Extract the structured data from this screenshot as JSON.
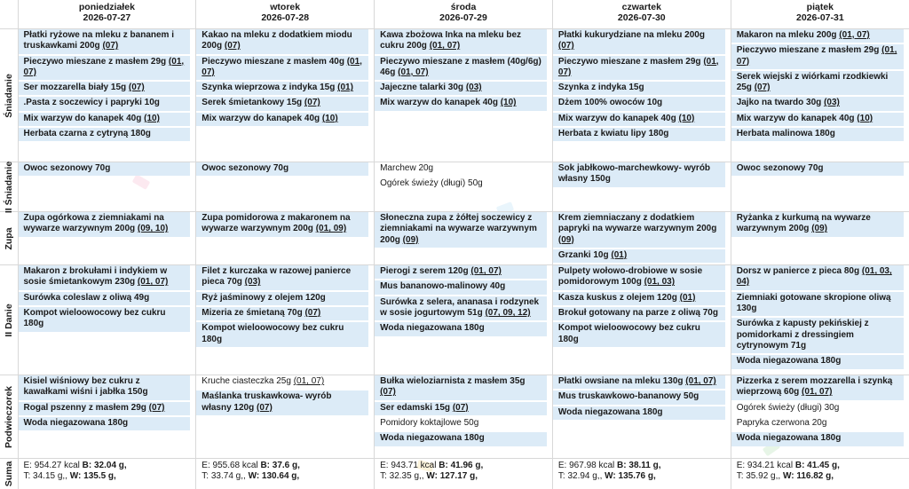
{
  "days": [
    {
      "name": "poniedziałek",
      "date": "2026-07-27"
    },
    {
      "name": "wtorek",
      "date": "2026-07-28"
    },
    {
      "name": "środa",
      "date": "2026-07-29"
    },
    {
      "name": "czwartek",
      "date": "2026-07-30"
    },
    {
      "name": "piątek",
      "date": "2026-07-31"
    }
  ],
  "meals": [
    {
      "label": "Śniadanie",
      "cells": [
        [
          {
            "text": "Płatki ryżowe na mleku z bananem i truskawkami 200g",
            "al": "(07)",
            "bg": "blue"
          },
          {
            "text": "Pieczywo mieszane z masłem 29g",
            "al": "(01, 07)",
            "bg": "blue"
          },
          {
            "text": "Ser mozzarella biały 15g",
            "al": "(07)",
            "bg": "blue"
          },
          {
            "text": ".Pasta z soczewicy i papryki 10g",
            "al": "",
            "bg": "blue"
          },
          {
            "text": "Mix warzyw do kanapek 40g",
            "al": "(10)",
            "bg": "blue"
          },
          {
            "text": "Herbata czarna z cytryną 180g",
            "al": "",
            "bg": "blue"
          }
        ],
        [
          {
            "text": "Kakao na mleku z dodatkiem miodu 200g",
            "al": "(07)",
            "bg": "blue"
          },
          {
            "text": "Pieczywo mieszane z masłem 40g",
            "al": "(01, 07)",
            "bg": "blue"
          },
          {
            "text": "Szynka wieprzowa z indyka 15g",
            "al": "(01)",
            "bg": "blue"
          },
          {
            "text": "Serek śmietankowy 15g",
            "al": "(07)",
            "bg": "blue"
          },
          {
            "text": "Mix warzyw do kanapek 40g",
            "al": "(10)",
            "bg": "blue"
          }
        ],
        [
          {
            "text": "Kawa zbożowa Inka na mleku bez cukru 200g",
            "al": "(01, 07)",
            "bg": "blue"
          },
          {
            "text": "Pieczywo mieszane z masłem (40g/6g) 46g",
            "al": "(01, 07)",
            "bg": "blue"
          },
          {
            "text": "Jajeczne talarki 30g",
            "al": "(03)",
            "bg": "blue"
          },
          {
            "text": "Mix warzyw do kanapek 40g",
            "al": "(10)",
            "bg": "blue"
          }
        ],
        [
          {
            "text": "Płatki kukurydziane na mleku 200g",
            "al": "(07)",
            "bg": "blue"
          },
          {
            "text": "Pieczywo mieszane z masłem 29g",
            "al": "(01, 07)",
            "bg": "blue"
          },
          {
            "text": "Szynka z indyka 15g",
            "al": "",
            "bg": "blue"
          },
          {
            "text": "Dżem 100% owoców 10g",
            "al": "",
            "bg": "blue"
          },
          {
            "text": "Mix warzyw do kanapek 40g",
            "al": "(10)",
            "bg": "blue"
          },
          {
            "text": "Herbata z kwiatu lipy 180g",
            "al": "",
            "bg": "blue"
          }
        ],
        [
          {
            "text": "Makaron na mleku 200g",
            "al": "(01, 07)",
            "bg": "blue"
          },
          {
            "text": "Pieczywo mieszane z masłem 29g",
            "al": "(01, 07)",
            "bg": "blue"
          },
          {
            "text": "Serek wiejski z wiórkami rzodkiewki 25g",
            "al": "(07)",
            "bg": "blue"
          },
          {
            "text": "Jajko na twardo 30g",
            "al": "(03)",
            "bg": "blue"
          },
          {
            "text": "Mix warzyw do kanapek 40g",
            "al": "(10)",
            "bg": "blue"
          },
          {
            "text": "Herbata malinowa 180g",
            "al": "",
            "bg": "blue"
          }
        ]
      ]
    },
    {
      "label": "II Śniadanie",
      "cells": [
        [
          {
            "text": "Owoc sezonowy 70g",
            "al": "",
            "bg": "blue"
          }
        ],
        [
          {
            "text": "Owoc sezonowy 70g",
            "al": "",
            "bg": "blue"
          }
        ],
        [
          {
            "text": "Marchew 20g",
            "al": "",
            "bg": "plain"
          },
          {
            "text": "Ogórek świeży (długi) 50g",
            "al": "",
            "bg": "plain"
          }
        ],
        [
          {
            "text": "Sok jabłkowo-marchewkowy- wyrób własny 150g",
            "al": "",
            "bg": "blue"
          }
        ],
        [
          {
            "text": "Owoc sezonowy 70g",
            "al": "",
            "bg": "blue"
          }
        ]
      ]
    },
    {
      "label": "Zupa",
      "cells": [
        [
          {
            "text": "Zupa ogórkowa z ziemniakami na wywarze warzywnym 200g",
            "al": "(09, 10)",
            "bg": "blue"
          }
        ],
        [
          {
            "text": "Zupa pomidorowa z makaronem na wywarze warzywnym 200g",
            "al": "(01, 09)",
            "bg": "blue"
          }
        ],
        [
          {
            "text": "Słoneczna zupa z żółtej soczewicy z ziemniakami na wywarze warzywnym 200g",
            "al": "(09)",
            "bg": "blue"
          }
        ],
        [
          {
            "text": "Krem ziemniaczany z dodatkiem papryki na wywarze warzywnym 200g",
            "al": "(09)",
            "bg": "blue"
          },
          {
            "text": "Grzanki 10g",
            "al": "(01)",
            "bg": "blue"
          }
        ],
        [
          {
            "text": "Ryżanka z kurkumą na wywarze warzywnym 200g",
            "al": "(09)",
            "bg": "blue"
          }
        ]
      ]
    },
    {
      "label": "II Danie",
      "cells": [
        [
          {
            "text": "Makaron z brokułami i indykiem w sosie śmietankowym 230g",
            "al": "(01, 07)",
            "bg": "blue"
          },
          {
            "text": "Surówka coleslaw z oliwą 49g",
            "al": "",
            "bg": "blue"
          },
          {
            "text": "Kompot wieloowocowy bez cukru 180g",
            "al": "",
            "bg": "blue"
          }
        ],
        [
          {
            "text": "Filet z kurczaka w razowej panierce pieca 70g",
            "al": "(03)",
            "bg": "blue"
          },
          {
            "text": "Ryż jaśminowy z olejem 120g",
            "al": "",
            "bg": "blue"
          },
          {
            "text": "Mizeria ze śmietaną 70g",
            "al": "(07)",
            "bg": "blue"
          },
          {
            "text": "Kompot wieloowocowy bez cukru 180g",
            "al": "",
            "bg": "blue"
          }
        ],
        [
          {
            "text": "Pierogi z serem 120g",
            "al": "(01, 07)",
            "bg": "blue"
          },
          {
            "text": "Mus bananowo-malinowy 40g",
            "al": "",
            "bg": "blue"
          },
          {
            "text": "Surówka z selera, ananasa i rodzynek w sosie jogurtowym 51g",
            "al": "(07, 09, 12)",
            "bg": "blue"
          },
          {
            "text": "Woda niegazowana 180g",
            "al": "",
            "bg": "blue"
          }
        ],
        [
          {
            "text": "Pulpety wołowo-drobiowe w sosie pomidorowym 100g",
            "al": "(01, 03)",
            "bg": "blue"
          },
          {
            "text": "Kasza kuskus z olejem 120g",
            "al": "(01)",
            "bg": "blue"
          },
          {
            "text": "Brokuł gotowany na parze z oliwą 70g",
            "al": "",
            "bg": "blue"
          },
          {
            "text": "Kompot wieloowocowy bez cukru 180g",
            "al": "",
            "bg": "blue"
          }
        ],
        [
          {
            "text": "Dorsz w panierce z pieca 80g",
            "al": "(01, 03, 04)",
            "bg": "blue"
          },
          {
            "text": "Ziemniaki gotowane skropione oliwą 130g",
            "al": "",
            "bg": "blue"
          },
          {
            "text": "Surówka z kapusty pekińskiej z pomidorkami z dressingiem cytrynowym 71g",
            "al": "",
            "bg": "blue"
          },
          {
            "text": "Woda niegazowana 180g",
            "al": "",
            "bg": "blue"
          }
        ]
      ]
    },
    {
      "label": "Podwieczorek",
      "cells": [
        [
          {
            "text": "Kisiel wiśniowy bez cukru z kawałkami wiśni i jabłka 150g",
            "al": "",
            "bg": "blue"
          },
          {
            "text": "Rogal pszenny z masłem 29g",
            "al": "(07)",
            "bg": "blue"
          },
          {
            "text": "Woda niegazowana 180g",
            "al": "",
            "bg": "blue"
          }
        ],
        [
          {
            "text": "Kruche ciasteczka 25g",
            "al": "(01, 07)",
            "bg": "plain"
          },
          {
            "text": "Maślanka truskawkowa- wyrób własny 120g",
            "al": "(07)",
            "bg": "blue"
          }
        ],
        [
          {
            "text": "Bułka wieloziarnista z masłem 35g",
            "al": "(07)",
            "bg": "blue"
          },
          {
            "text": "Ser edamski 15g",
            "al": "(07)",
            "bg": "blue"
          },
          {
            "text": "Pomidory koktajlowe 50g",
            "al": "",
            "bg": "plain"
          },
          {
            "text": "Woda niegazowana 180g",
            "al": "",
            "bg": "blue"
          }
        ],
        [
          {
            "text": "Płatki owsiane na mleku 130g",
            "al": "(01, 07)",
            "bg": "blue"
          },
          {
            "text": "Mus truskawkowo-bananowy 50g",
            "al": "",
            "bg": "blue"
          },
          {
            "text": "Woda niegazowana 180g",
            "al": "",
            "bg": "blue"
          }
        ],
        [
          {
            "text": "Pizzerka z serem mozzarella i szynką wieprzową 60g",
            "al": "(01, 07)",
            "bg": "blue"
          },
          {
            "text": "Ogórek świeży (długi) 30g",
            "al": "",
            "bg": "plain"
          },
          {
            "text": "Papryka czerwona 20g",
            "al": "",
            "bg": "plain"
          },
          {
            "text": "Woda niegazowana 180g",
            "al": "",
            "bg": "blue"
          }
        ]
      ]
    }
  ],
  "sum_label": "Suma",
  "sums": [
    {
      "e": "E: 954.27 kcal",
      "b": "B: 32.04 g,",
      "t": "T: 34.15 g,",
      "w": "W: 135.5 g,"
    },
    {
      "e": "E: 955.68 kcal",
      "b": "B: 37.6 g,",
      "t": "T: 33.74 g,",
      "w": "W: 130.64 g,"
    },
    {
      "e": "E: 943.71 kcal",
      "b": "B: 41.96 g,",
      "t": "T: 32.35 g,",
      "w": "W: 127.17 g,"
    },
    {
      "e": "E: 967.98 kcal",
      "b": "B: 38.11 g,",
      "t": "T: 32.94 g,",
      "w": "W: 135.76 g,"
    },
    {
      "e": "E: 934.21 kcal",
      "b": "B: 41.45 g,",
      "t": "T: 35.92 g,",
      "w": "W: 116.82 g,"
    }
  ],
  "colors": {
    "highlight": "#dcebf7",
    "grid": "#d8d8d8"
  }
}
